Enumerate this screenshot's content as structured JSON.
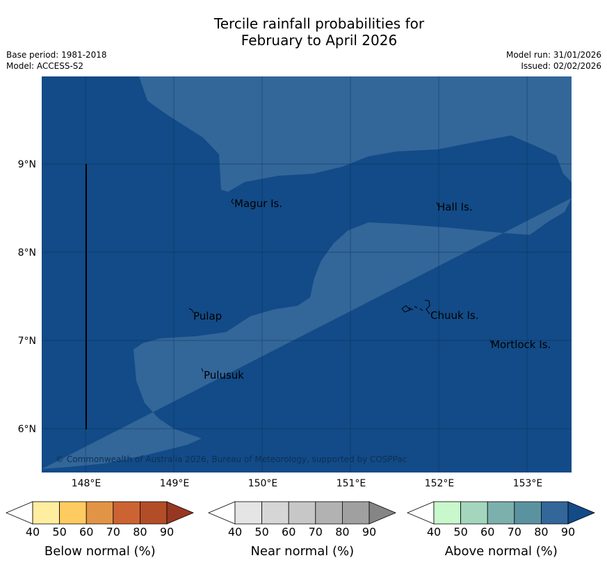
{
  "title": {
    "line1": "Tercile rainfall probabilities for",
    "line2": "February to April 2026"
  },
  "meta": {
    "base_period": "Base period: 1981-2018",
    "model": "Model: ACCESS-S2",
    "model_run": "Model run: 31/01/2026",
    "issued": "Issued: 02/02/2026"
  },
  "map": {
    "lat_labels": [
      "9°N",
      "8°N",
      "7°N",
      "6°N"
    ],
    "lon_labels": [
      "148°E",
      "149°E",
      "150°E",
      "151°E",
      "152°E",
      "153°E"
    ],
    "places": [
      {
        "name": "Magur Is."
      },
      {
        "name": "Hall Is."
      },
      {
        "name": "Pulap"
      },
      {
        "name": "Chuuk Is."
      },
      {
        "name": "Mortlock Is."
      },
      {
        "name": "Pulusuk"
      }
    ],
    "copyright": "© Commonwealth of Australia 2026, Bureau of Meteorology, supported by COSPPac",
    "colors": {
      "above_80": "#336699",
      "above_90": "#124b87"
    }
  },
  "colorbars": [
    {
      "label": "Below normal (%)",
      "ticks": [
        "40",
        "50",
        "60",
        "70",
        "80",
        "90"
      ],
      "colors": [
        "#ffffff",
        "#ffeda0",
        "#fecb61",
        "#e29446",
        "#cd6332",
        "#b24d27",
        "#983721"
      ]
    },
    {
      "label": "Near normal (%)",
      "ticks": [
        "40",
        "50",
        "60",
        "70",
        "80",
        "90"
      ],
      "colors": [
        "#ffffff",
        "#e5e5e5",
        "#d6d6d6",
        "#c7c7c7",
        "#b2b2b2",
        "#a0a0a0",
        "#858585"
      ]
    },
    {
      "label": "Above normal (%)",
      "ticks": [
        "40",
        "50",
        "60",
        "70",
        "80",
        "90"
      ],
      "colors": [
        "#ffffff",
        "#c8f8cc",
        "#a4d6bd",
        "#7bb0ad",
        "#5b92a0",
        "#336699",
        "#124b87"
      ]
    }
  ]
}
